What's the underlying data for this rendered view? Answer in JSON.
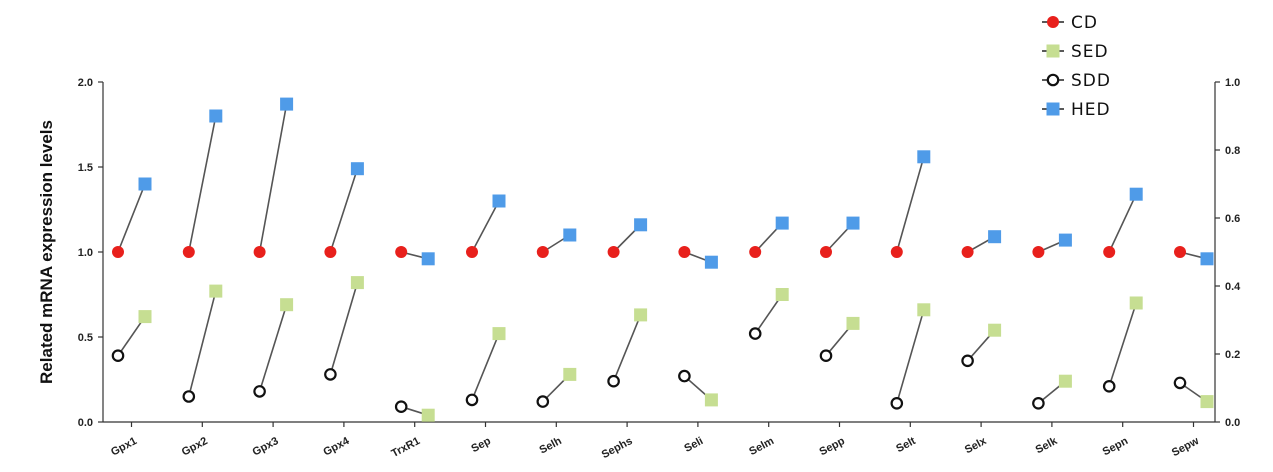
{
  "chart_data": {
    "type": "scatter",
    "ylabel": "Related mRNA expression levels",
    "ylim_left": [
      0,
      2.0
    ],
    "yticks_left": [
      "0.0",
      "0.5",
      "1.0",
      "1.5",
      "2.0"
    ],
    "ylim_right": [
      0,
      1.0
    ],
    "yticks_right": [
      "0.0",
      "0.2",
      "0.4",
      "0.6",
      "0.8",
      "1.0"
    ],
    "categories": [
      "Gpx1",
      "Gpx2",
      "Gpx3",
      "Gpx4",
      "TrxR1",
      "Sep",
      "Selh",
      "Sephs",
      "Seli",
      "Selm",
      "Sepp",
      "Selt",
      "Selx",
      "Selk",
      "Sepn",
      "Sepw"
    ],
    "legend_position": "top-right",
    "grid": false,
    "series": [
      {
        "name": "CD",
        "axis": "left",
        "marker": "circle-filled",
        "color": "#e8201c",
        "values": [
          1.0,
          1.0,
          1.0,
          1.0,
          1.0,
          1.0,
          1.0,
          1.0,
          1.0,
          1.0,
          1.0,
          1.0,
          1.0,
          1.0,
          1.0,
          1.0
        ]
      },
      {
        "name": "HED",
        "axis": "left",
        "marker": "square",
        "color": "#4f9be8",
        "values": [
          1.4,
          1.8,
          1.87,
          1.49,
          0.96,
          1.3,
          1.1,
          1.16,
          0.94,
          1.17,
          1.17,
          1.56,
          1.09,
          1.07,
          1.34,
          0.96
        ]
      },
      {
        "name": "SDD",
        "axis": "left",
        "marker": "circle-open",
        "color": "#111111",
        "values": [
          0.39,
          0.15,
          0.18,
          0.28,
          0.09,
          0.13,
          0.12,
          0.24,
          0.27,
          0.52,
          0.39,
          0.11,
          0.36,
          0.11,
          0.21,
          0.23
        ]
      },
      {
        "name": "SED",
        "axis": "left",
        "marker": "square",
        "color": "#c6de92",
        "values": [
          0.62,
          0.77,
          0.69,
          0.82,
          0.04,
          0.52,
          0.28,
          0.63,
          0.13,
          0.75,
          0.58,
          0.66,
          0.54,
          0.24,
          0.7,
          0.12
        ]
      }
    ],
    "pairs": [
      [
        "CD",
        "HED"
      ],
      [
        "SDD",
        "SED"
      ]
    ],
    "legend": [
      {
        "name": "CD",
        "marker": "circle-filled",
        "color": "#e8201c"
      },
      {
        "name": "SED",
        "marker": "square",
        "color": "#c6de92"
      },
      {
        "name": "SDD",
        "marker": "circle-open",
        "color": "#111111"
      },
      {
        "name": "HED",
        "marker": "square",
        "color": "#4f9be8"
      }
    ],
    "colors": {
      "connector": "#555555",
      "axis": "#333333"
    }
  }
}
